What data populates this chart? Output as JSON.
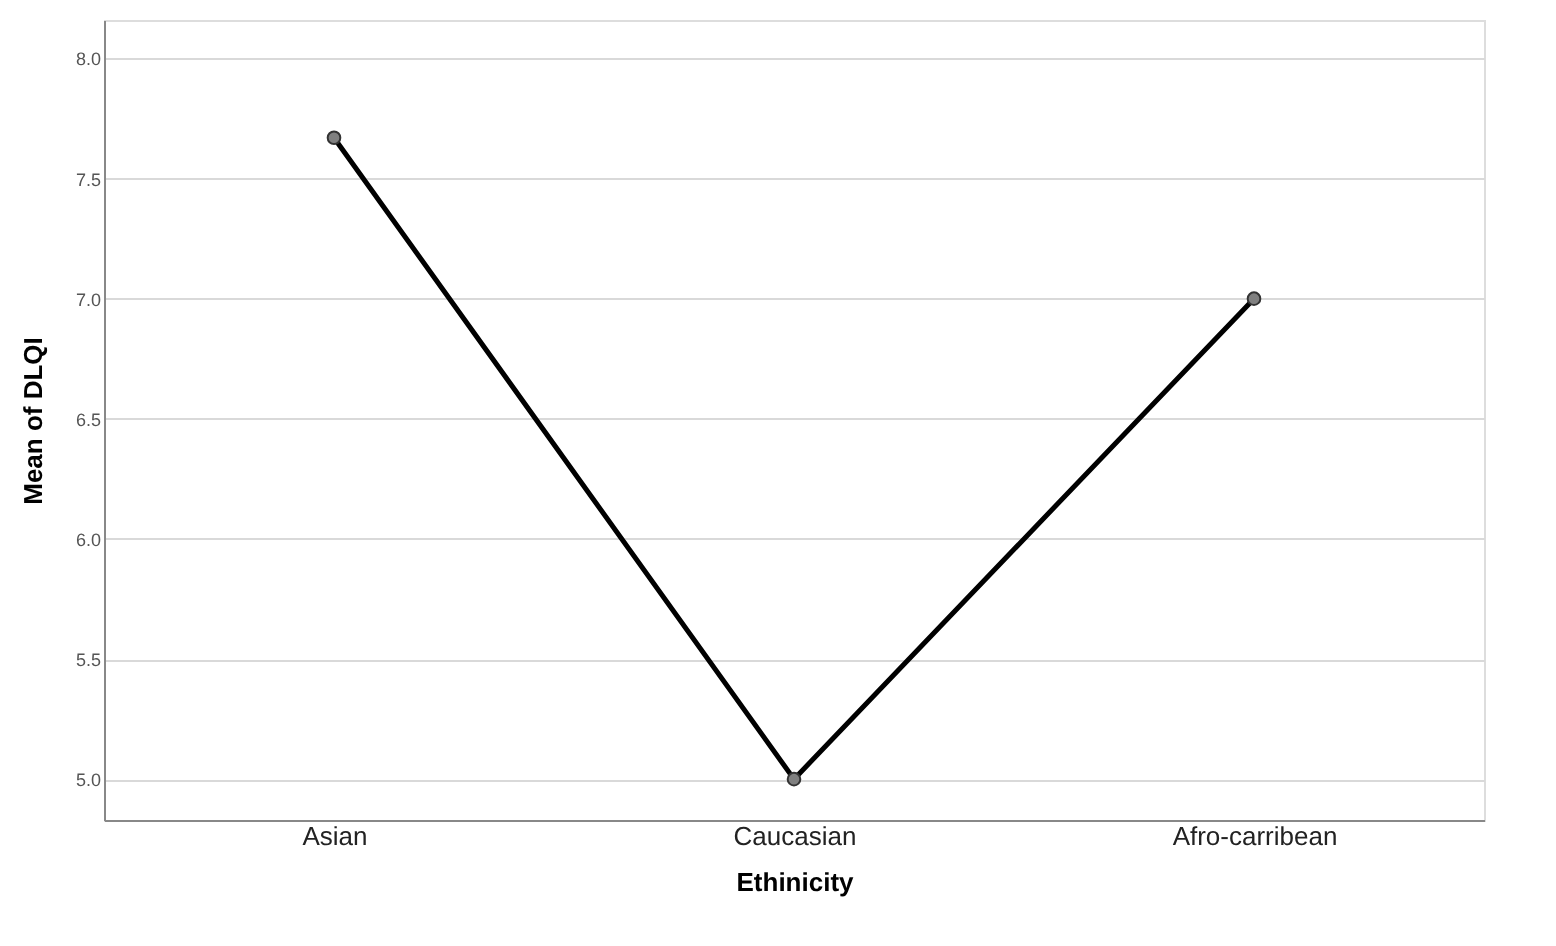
{
  "chart_data": {
    "type": "line",
    "xlabel": "Ethinicity",
    "ylabel": "Mean of DLQI",
    "categories": [
      "Asian",
      "Caucasian",
      "Afro-carribean"
    ],
    "series": [
      {
        "color": "#000000",
        "values": [
          7.67,
          5.0,
          7.0
        ]
      }
    ],
    "marker": "circle",
    "line_style": "solid",
    "ylim": [
      4.83,
      8.16
    ],
    "yticks": [
      {
        "value": 5,
        "label": "5.0"
      },
      5.5,
      {
        "value": 6,
        "label": "6.0"
      },
      6.5,
      {
        "value": 7,
        "label": "7.0"
      },
      7.5,
      {
        "value": 8,
        "label": "8.0"
      }
    ],
    "grid": "y",
    "legend": false
  }
}
